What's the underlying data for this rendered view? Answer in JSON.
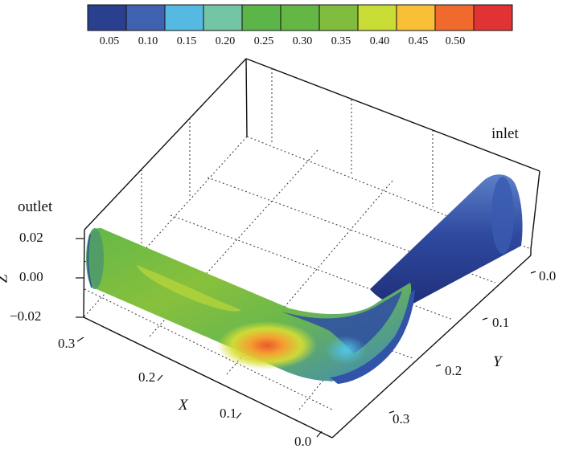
{
  "colorbar": {
    "colors": [
      "#2b3f8f",
      "#3e62b0",
      "#56b9e2",
      "#74c4a6",
      "#5cb548",
      "#64b744",
      "#80bd3f",
      "#c8dc35",
      "#f9bf36",
      "#ef6a2c",
      "#e23334"
    ],
    "ticks": [
      "0.05",
      "0.10",
      "0.15",
      "0.20",
      "0.25",
      "0.30",
      "0.35",
      "0.40",
      "0.45",
      "0.50"
    ]
  },
  "annotations": {
    "inlet": "inlet",
    "outlet": "outlet"
  },
  "axes": {
    "x": {
      "title": "X",
      "ticks": [
        "0.3",
        "0.2",
        "0.1",
        "0.0"
      ]
    },
    "y": {
      "title": "Y",
      "ticks": [
        "0.0",
        "0.1",
        "0.2",
        "0.3"
      ]
    },
    "z": {
      "title": "Z",
      "ticks": [
        "0.02",
        "0.00",
        "−0.02"
      ]
    }
  }
}
